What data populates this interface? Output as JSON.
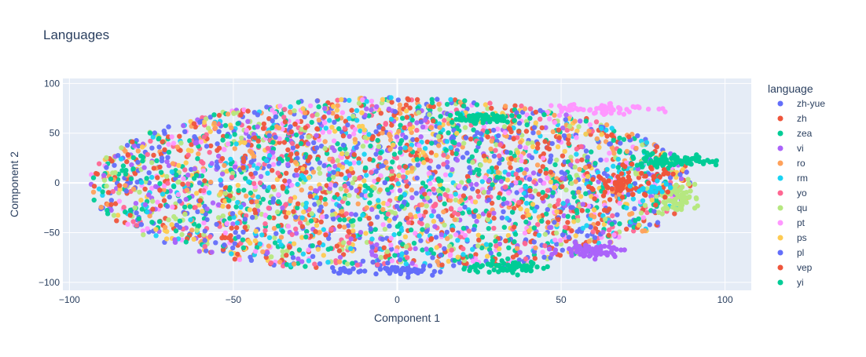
{
  "chart_data": {
    "type": "scatter",
    "title": "Languages",
    "xlabel": "Component 1",
    "ylabel": "Component 2",
    "xlim": [
      -102,
      108
    ],
    "ylim": [
      -108,
      105
    ],
    "xticks": [
      -100,
      -50,
      0,
      50,
      100
    ],
    "yticks": [
      -100,
      -50,
      0,
      50,
      100
    ],
    "grid": true,
    "legend": {
      "title": "language",
      "placement": "right"
    },
    "plot_bgcolor": "#E5ECF6",
    "series": [
      {
        "name": "zh-yue",
        "color": "#636EFA"
      },
      {
        "name": "zh",
        "color": "#EF553B"
      },
      {
        "name": "zea",
        "color": "#00CC96"
      },
      {
        "name": "vi",
        "color": "#AB63FA"
      },
      {
        "name": "ro",
        "color": "#FFA15A"
      },
      {
        "name": "rm",
        "color": "#19D3F3"
      },
      {
        "name": "yo",
        "color": "#FF6692"
      },
      {
        "name": "qu",
        "color": "#B6E880"
      },
      {
        "name": "pt",
        "color": "#FF97FF"
      },
      {
        "name": "ps",
        "color": "#FECB52"
      },
      {
        "name": "pl",
        "color": "#636EFA"
      },
      {
        "name": "vep",
        "color": "#EF553B"
      },
      {
        "name": "yi",
        "color": "#00CC96"
      }
    ]
  }
}
